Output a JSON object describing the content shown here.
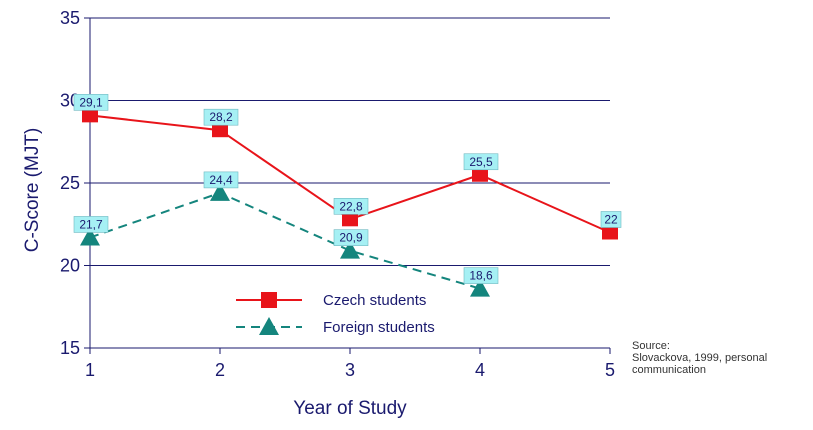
{
  "chart_data": {
    "type": "line",
    "x": [
      1,
      2,
      3,
      4,
      5
    ],
    "xlabel": "Year of Study",
    "ylabel": "C-Score (MJT)",
    "xlim": [
      1,
      5
    ],
    "ylim": [
      15,
      35
    ],
    "x_ticks": [
      "1",
      "2",
      "3",
      "4",
      "5"
    ],
    "y_ticks": [
      "15",
      "20",
      "25",
      "30",
      "35"
    ],
    "grid": "horizontal",
    "legend_position": "bottom-center",
    "series": [
      {
        "name": "Czech students",
        "color": "#e8141a",
        "marker": "square",
        "line_style": "solid",
        "values": [
          29.1,
          28.2,
          22.8,
          25.5,
          22
        ],
        "labels": [
          "29,1",
          "28,2",
          "22,8",
          "25,5",
          "22"
        ]
      },
      {
        "name": "Foreign students",
        "color": "#14857d",
        "marker": "triangle",
        "line_style": "dashed",
        "values": [
          21.7,
          24.4,
          20.9,
          18.6,
          null
        ],
        "labels": [
          "21,7",
          "24,4",
          "20,9",
          "18,6",
          null
        ]
      }
    ],
    "source_note": [
      "Source:",
      "Slovackova, 1999, personal",
      "communication"
    ],
    "data_label_bg": "#a6f0f4",
    "axis_color": "#1a1a6e"
  }
}
